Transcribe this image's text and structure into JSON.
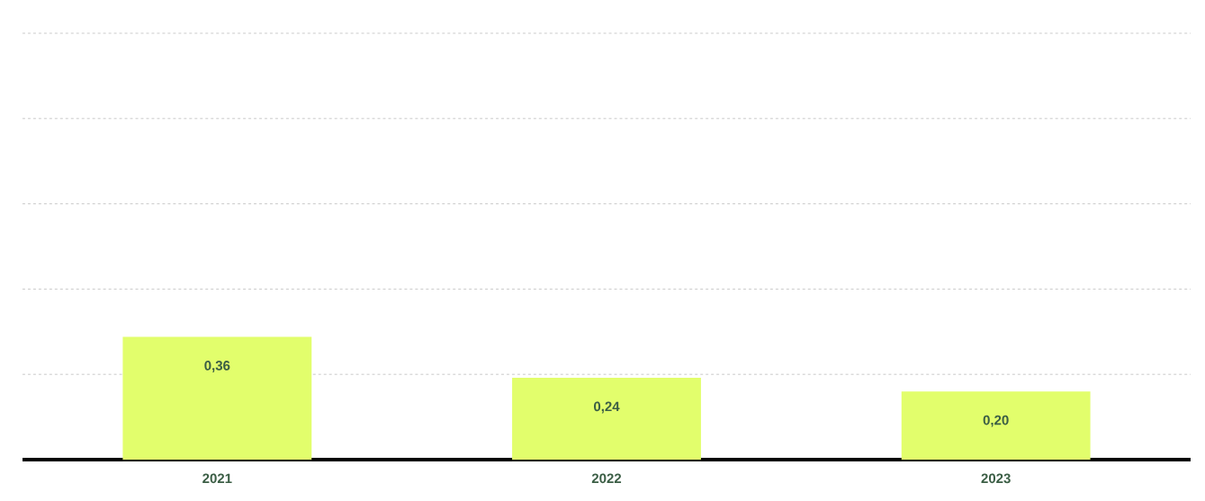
{
  "chart_data": {
    "type": "bar",
    "categories": [
      "2021",
      "2022",
      "2023"
    ],
    "values": [
      0.36,
      0.24,
      0.2
    ],
    "value_labels": [
      "0,36",
      "0,24",
      "0,20"
    ],
    "color": "#e2fe6c",
    "ylim": [
      0,
      1.25
    ],
    "yticks": [
      {
        "value": 0.25,
        "label": null
      },
      {
        "value": 0.5,
        "label": null
      },
      {
        "value": 0.75,
        "label": null
      },
      {
        "value": 1.0,
        "label": null
      },
      {
        "value": 1.25,
        "label": null
      }
    ],
    "grid": "y",
    "tick_labels": "x"
  }
}
